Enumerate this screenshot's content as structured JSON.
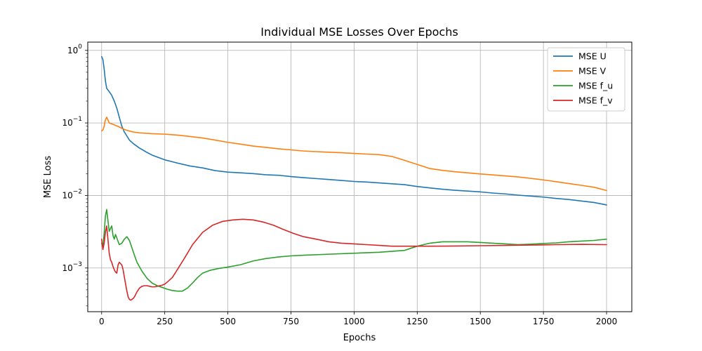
{
  "chart_data": {
    "type": "line",
    "title": "Individual MSE Losses Over Epochs",
    "xlabel": "Epochs",
    "ylabel": "MSE Loss",
    "y_scale": "log",
    "grid": true,
    "legend_position": "top-right",
    "xlim": [
      -55,
      2100
    ],
    "ylim": [
      0.00025,
      1.3
    ],
    "x_ticks": [
      0,
      250,
      500,
      750,
      1000,
      1250,
      1500,
      1750,
      2000
    ],
    "x_tick_labels": [
      "0",
      "250",
      "500",
      "750",
      "1000",
      "1250",
      "1500",
      "1750",
      "2000"
    ],
    "y_ticks": [
      0.001,
      0.01,
      0.1,
      1
    ],
    "y_tick_labels": [
      "10^{-3}",
      "10^{-2}",
      "10^{-1}",
      "10^{0}"
    ],
    "series": [
      {
        "name": "MSE U",
        "color": "#1f77b4",
        "x": [
          0,
          5,
          10,
          15,
          20,
          30,
          40,
          50,
          60,
          70,
          80,
          90,
          100,
          110,
          125,
          150,
          175,
          200,
          250,
          300,
          350,
          400,
          450,
          500,
          550,
          600,
          650,
          700,
          750,
          800,
          850,
          900,
          950,
          1000,
          1050,
          1100,
          1150,
          1200,
          1250,
          1300,
          1350,
          1400,
          1450,
          1500,
          1550,
          1600,
          1650,
          1700,
          1750,
          1800,
          1850,
          1900,
          1950,
          2000
        ],
        "values": [
          0.82,
          0.75,
          0.55,
          0.38,
          0.3,
          0.27,
          0.24,
          0.2,
          0.16,
          0.12,
          0.09,
          0.075,
          0.066,
          0.058,
          0.052,
          0.045,
          0.04,
          0.036,
          0.031,
          0.028,
          0.0255,
          0.024,
          0.022,
          0.021,
          0.0205,
          0.02,
          0.0193,
          0.019,
          0.0182,
          0.0176,
          0.0171,
          0.0166,
          0.0161,
          0.0156,
          0.0153,
          0.0149,
          0.0145,
          0.0141,
          0.0133,
          0.0127,
          0.0122,
          0.0118,
          0.0115,
          0.0112,
          0.0108,
          0.0105,
          0.0101,
          0.0098,
          0.0095,
          0.0091,
          0.0088,
          0.0084,
          0.008,
          0.0074
        ]
      },
      {
        "name": "MSE V",
        "color": "#ff7f0e",
        "x": [
          0,
          5,
          10,
          15,
          20,
          25,
          30,
          40,
          50,
          60,
          70,
          80,
          100,
          125,
          150,
          200,
          250,
          300,
          350,
          400,
          450,
          500,
          550,
          600,
          650,
          700,
          750,
          800,
          850,
          900,
          950,
          1000,
          1050,
          1100,
          1150,
          1200,
          1250,
          1300,
          1350,
          1400,
          1450,
          1500,
          1550,
          1600,
          1650,
          1700,
          1750,
          1800,
          1850,
          1900,
          1950,
          2000
        ],
        "values": [
          0.078,
          0.08,
          0.09,
          0.11,
          0.12,
          0.11,
          0.1,
          0.097,
          0.094,
          0.091,
          0.088,
          0.084,
          0.079,
          0.075,
          0.073,
          0.071,
          0.07,
          0.068,
          0.065,
          0.062,
          0.058,
          0.054,
          0.051,
          0.048,
          0.046,
          0.044,
          0.0425,
          0.041,
          0.0402,
          0.0395,
          0.0388,
          0.038,
          0.0372,
          0.0365,
          0.0345,
          0.0305,
          0.0268,
          0.0235,
          0.0222,
          0.0212,
          0.0205,
          0.0198,
          0.0192,
          0.0186,
          0.018,
          0.0172,
          0.0164,
          0.0155,
          0.0146,
          0.0138,
          0.013,
          0.0117
        ]
      },
      {
        "name": "MSE f_u",
        "color": "#2ca02c",
        "x": [
          0,
          5,
          10,
          15,
          20,
          25,
          30,
          35,
          40,
          45,
          50,
          55,
          60,
          70,
          80,
          90,
          100,
          110,
          120,
          130,
          140,
          160,
          180,
          200,
          220,
          240,
          260,
          280,
          300,
          320,
          340,
          360,
          380,
          400,
          430,
          460,
          500,
          550,
          600,
          650,
          700,
          750,
          800,
          900,
          1000,
          1100,
          1200,
          1250,
          1300,
          1350,
          1400,
          1450,
          1500,
          1550,
          1600,
          1650,
          1700,
          1750,
          1800,
          1850,
          1900,
          1950,
          2000
        ],
        "values": [
          0.0022,
          0.0019,
          0.003,
          0.0052,
          0.0064,
          0.0045,
          0.0032,
          0.0035,
          0.0038,
          0.0028,
          0.0025,
          0.0029,
          0.0026,
          0.0021,
          0.0022,
          0.0025,
          0.0027,
          0.0024,
          0.0019,
          0.0015,
          0.0012,
          0.0009,
          0.00072,
          0.00062,
          0.00057,
          0.00054,
          0.00051,
          0.00049,
          0.00048,
          0.00048,
          0.00053,
          0.00062,
          0.00074,
          0.00085,
          0.00093,
          0.00098,
          0.00103,
          0.00111,
          0.00125,
          0.00135,
          0.00142,
          0.00147,
          0.0015,
          0.00155,
          0.0016,
          0.00165,
          0.00175,
          0.002,
          0.0022,
          0.0023,
          0.0023,
          0.0023,
          0.00225,
          0.0022,
          0.00215,
          0.0021,
          0.00213,
          0.00218,
          0.00222,
          0.0023,
          0.00235,
          0.0024,
          0.0025
        ]
      },
      {
        "name": "MSE f_v",
        "color": "#d62728",
        "x": [
          0,
          5,
          10,
          15,
          20,
          25,
          30,
          35,
          40,
          45,
          50,
          55,
          60,
          65,
          70,
          75,
          80,
          85,
          90,
          95,
          100,
          105,
          110,
          115,
          120,
          125,
          130,
          140,
          150,
          160,
          170,
          180,
          190,
          200,
          210,
          220,
          230,
          240,
          250,
          260,
          280,
          300,
          330,
          360,
          400,
          440,
          480,
          520,
          560,
          600,
          640,
          680,
          720,
          760,
          800,
          850,
          900,
          950,
          1000,
          1050,
          1100,
          1150,
          1200,
          1250,
          1300,
          1400,
          1500,
          1600,
          1700,
          1800,
          1900,
          2000
        ],
        "values": [
          0.0025,
          0.0018,
          0.0022,
          0.0031,
          0.0038,
          0.0025,
          0.0016,
          0.0013,
          0.0012,
          0.00105,
          0.00095,
          0.00088,
          0.00085,
          0.0011,
          0.0012,
          0.00115,
          0.0011,
          0.00095,
          0.00075,
          0.0006,
          0.00048,
          0.0004,
          0.00037,
          0.00036,
          0.00037,
          0.00038,
          0.0004,
          0.00047,
          0.00053,
          0.00056,
          0.00057,
          0.00057,
          0.00056,
          0.00055,
          0.00055,
          0.00056,
          0.00057,
          0.00058,
          0.0006,
          0.00064,
          0.00074,
          0.00095,
          0.0014,
          0.0021,
          0.0031,
          0.0039,
          0.0044,
          0.0046,
          0.0047,
          0.0046,
          0.0043,
          0.0039,
          0.0034,
          0.003,
          0.0027,
          0.0025,
          0.0023,
          0.0022,
          0.00215,
          0.0021,
          0.00205,
          0.002,
          0.002,
          0.002,
          0.002,
          0.00201,
          0.00203,
          0.00205,
          0.00207,
          0.0021,
          0.00212,
          0.0021
        ]
      }
    ]
  }
}
